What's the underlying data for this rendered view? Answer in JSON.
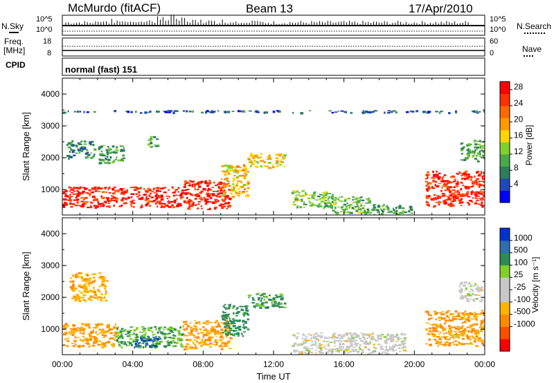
{
  "header": {
    "station": "McMurdo (fitACF)",
    "beam": "Beam 13",
    "date": "17/Apr/2010"
  },
  "strip_labels": {
    "nsky": "N.Sky",
    "nsearch": "N.Search",
    "freq_line1": "Freq.",
    "freq_line2": "[MHz]",
    "nave": "Nave",
    "cpid": "CPID",
    "cpid_text": "normal (fast) 151"
  },
  "strip_ticks": {
    "noise_left_top": "10^5",
    "noise_left_bottom": "10^0",
    "noise_right_top": "10^5",
    "noise_right_bottom": "10^0",
    "freq_left_top": "18",
    "freq_left_bottom": "8",
    "nave_right_top": "60",
    "nave_right_bottom": "0"
  },
  "chart_data": [
    {
      "type": "heatmap",
      "panel": "power",
      "ylabel": "Slant Range [km]",
      "xlabel": "Time UT",
      "ylim": [
        200,
        4500
      ],
      "xlim": [
        0,
        24
      ],
      "y_ticks": [
        "1000",
        "2000",
        "3000",
        "4000"
      ],
      "x_ticks": [
        "00:00",
        "04:00",
        "08:00",
        "12:00",
        "16:00",
        "20:00",
        "00:00"
      ],
      "colorbar": {
        "label": "Power [dB]",
        "tick_labels": [
          "4",
          "8",
          "12",
          "16",
          "20",
          "24",
          "28"
        ],
        "range": [
          0,
          30
        ],
        "colors": [
          "#0000ff",
          "#1f49b8",
          "#2e7d5a",
          "#4aa84a",
          "#7fd12a",
          "#ffd700",
          "#ff9a00",
          "#ff6a00",
          "#ff3000",
          "#ff0000"
        ]
      },
      "regions": [
        {
          "t0": 0.0,
          "t1": 6.8,
          "r0": 450,
          "r1": 1100,
          "value": 27
        },
        {
          "t0": 6.8,
          "t1": 9.5,
          "r0": 400,
          "r1": 1300,
          "value": 27
        },
        {
          "t0": 9.0,
          "t1": 10.5,
          "r0": 800,
          "r1": 1800,
          "value": 18
        },
        {
          "t0": 10.5,
          "t1": 12.6,
          "r0": 1700,
          "r1": 2150,
          "value": 17
        },
        {
          "t0": 0.2,
          "t1": 1.8,
          "r0": 2000,
          "r1": 2550,
          "value": 8
        },
        {
          "t0": 2.0,
          "t1": 3.5,
          "r0": 1850,
          "r1": 2400,
          "value": 10
        },
        {
          "t0": 4.8,
          "t1": 5.4,
          "r0": 2350,
          "r1": 2700,
          "value": 9
        },
        {
          "t0": 13.0,
          "t1": 15.5,
          "r0": 450,
          "r1": 1000,
          "value": 12
        },
        {
          "t0": 15.3,
          "t1": 17.5,
          "r0": 250,
          "r1": 800,
          "value": 12
        },
        {
          "t0": 17.5,
          "t1": 19.8,
          "r0": 200,
          "r1": 550,
          "value": 10
        },
        {
          "t0": 20.6,
          "t1": 24.0,
          "r0": 500,
          "r1": 1600,
          "value": 26
        },
        {
          "t0": 22.6,
          "t1": 24.0,
          "r0": 1900,
          "r1": 2600,
          "value": 10
        },
        {
          "t0": 0.0,
          "t1": 24.0,
          "r0": 3430,
          "r1": 3500,
          "value": 6
        }
      ]
    },
    {
      "type": "heatmap",
      "panel": "velocity",
      "ylabel": "Slant Range [km]",
      "xlabel": "Time UT",
      "ylim": [
        200,
        4500
      ],
      "xlim": [
        0,
        24
      ],
      "y_ticks": [
        "1000",
        "2000",
        "3000",
        "4000"
      ],
      "x_ticks": [
        "00:00",
        "04:00",
        "08:00",
        "12:00",
        "16:00",
        "20:00",
        "00:00"
      ],
      "colorbar": {
        "label": "Velocity [m s⁻¹]",
        "tick_labels": [
          "-1000",
          "-500",
          "-100",
          "-25",
          "25",
          "100",
          "500",
          "1000"
        ],
        "colors": [
          "#ff0000",
          "#ff4d00",
          "#ff8a00",
          "#ffb400",
          "#c8c8c8",
          "#c8c8c8",
          "#7fd12a",
          "#2e8b57",
          "#2f6fb0",
          "#0033cc"
        ]
      },
      "regions": [
        {
          "t0": 0.0,
          "t1": 3.0,
          "r0": 450,
          "r1": 1200,
          "value": -100
        },
        {
          "t0": 3.0,
          "t1": 6.8,
          "r0": 450,
          "r1": 1100,
          "value": 100
        },
        {
          "t0": 3.8,
          "t1": 5.4,
          "r0": 450,
          "r1": 800,
          "value": 800
        },
        {
          "t0": 6.8,
          "t1": 9.5,
          "r0": 400,
          "r1": 1300,
          "value": -100
        },
        {
          "t0": 9.0,
          "t1": 10.5,
          "r0": 800,
          "r1": 1800,
          "value": 300
        },
        {
          "t0": 10.5,
          "t1": 12.6,
          "r0": 1700,
          "r1": 2150,
          "value": 150
        },
        {
          "t0": 0.4,
          "t1": 2.5,
          "r0": 1900,
          "r1": 2800,
          "value": -80
        },
        {
          "t0": 13.0,
          "t1": 19.5,
          "r0": 250,
          "r1": 900,
          "value": 0
        },
        {
          "t0": 20.6,
          "t1": 24.0,
          "r0": 500,
          "r1": 1600,
          "value": -120
        },
        {
          "t0": 22.5,
          "t1": 23.8,
          "r0": 1900,
          "r1": 2500,
          "value": 0
        }
      ]
    }
  ]
}
